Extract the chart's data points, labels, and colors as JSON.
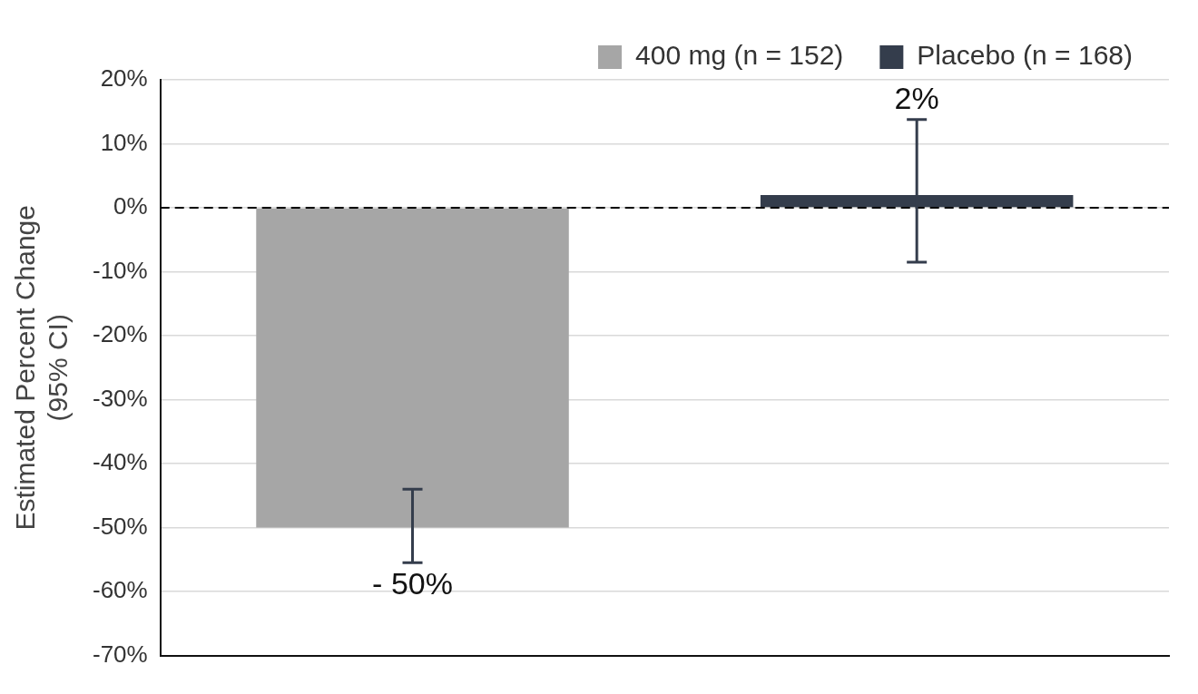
{
  "chart_data": {
    "type": "bar",
    "categories": [
      null,
      null
    ],
    "ylabel": "Estimated Percent Change\n(95% CI)",
    "series": [
      {
        "name": "400 mg (n = 152)",
        "color": "#a6a6a6",
        "values": [
          -50,
          null
        ],
        "errors": [
          [
            -55.5,
            -44
          ],
          null
        ],
        "value_labels": [
          "- 50%",
          null
        ]
      },
      {
        "name": "Placebo (n = 168)",
        "color": "#343d4c",
        "values": [
          null,
          2
        ],
        "errors": [
          null,
          [
            -8.5,
            13.8
          ]
        ],
        "value_labels": [
          null,
          "2%"
        ]
      }
    ],
    "ylim": [
      -70,
      20
    ],
    "yticks": [
      {
        "value": -70,
        "label": "-70%"
      },
      {
        "value": -60,
        "label": "-60%"
      },
      {
        "value": -50,
        "label": "-50%"
      },
      {
        "value": -40,
        "label": "-40%"
      },
      {
        "value": -30,
        "label": "-30%"
      },
      {
        "value": -20,
        "label": "-20%"
      },
      {
        "value": -10,
        "label": "-10%"
      },
      {
        "value": 0,
        "label": "0%"
      },
      {
        "value": 10,
        "label": "10%"
      },
      {
        "value": 20,
        "label": "20%"
      }
    ],
    "ref_lines": [
      {
        "axis": "y",
        "value": 0,
        "color": "#000000",
        "line_style": "dashed"
      }
    ],
    "grid": "y",
    "legend": "top"
  }
}
